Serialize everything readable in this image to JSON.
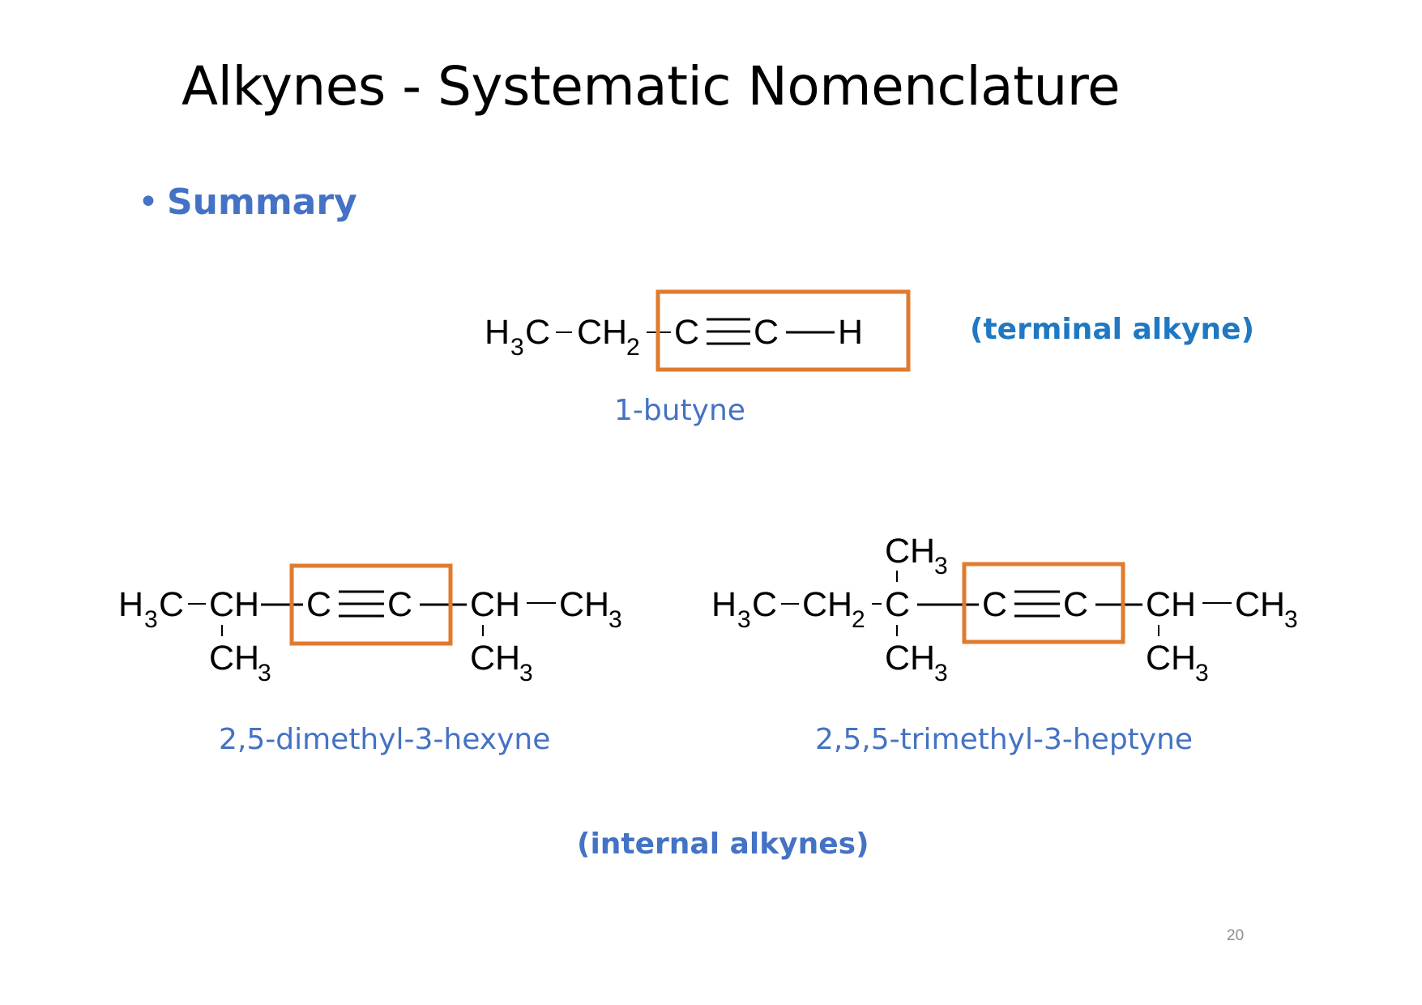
{
  "slide": {
    "title": "Alkynes - Systematic Nomenclature",
    "bullet": "Summary",
    "bullet_marker": "•",
    "page_number": "20"
  },
  "colors": {
    "title": "#000000",
    "accent_blue": "#4472C4",
    "terminal_blue": "#1F78C1",
    "highlight_orange": "#E07B2E",
    "page_number": "#8c8c8c"
  },
  "molecule1": {
    "name": "1-butyne",
    "note": "(terminal alkyne)",
    "atoms": [
      "H",
      "3",
      "C",
      "CH",
      "2",
      "C",
      "C",
      "H"
    ]
  },
  "molecule2": {
    "name": "2,5-dimethyl-3-hexyne",
    "atoms": [
      "H",
      "3",
      "C",
      "CH",
      "CH",
      "3",
      "C",
      "C",
      "CH",
      "CH",
      "3",
      "CH",
      "3"
    ]
  },
  "molecule3": {
    "name": "2,5,5-trimethyl-3-heptyne",
    "atoms": [
      "H",
      "3",
      "C",
      "CH",
      "2",
      "C",
      "CH",
      "3",
      "CH",
      "3",
      "C",
      "C",
      "CH",
      "CH",
      "3",
      "CH",
      "3"
    ]
  },
  "internal_note": "(internal alkynes)"
}
